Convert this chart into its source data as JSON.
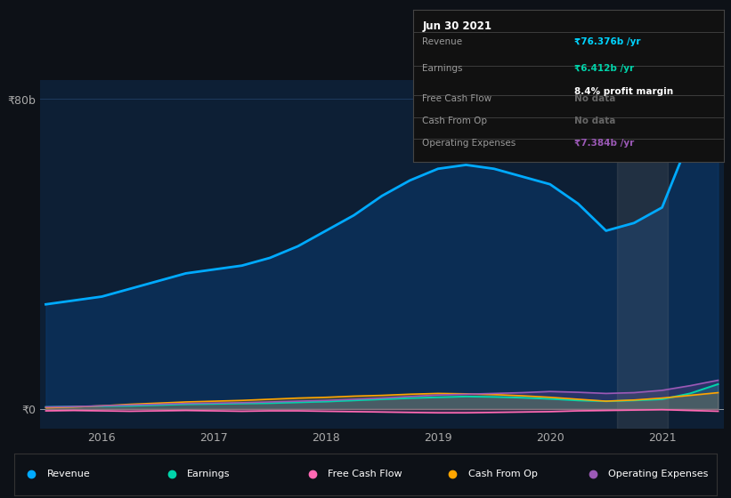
{
  "bg_color": "#0d1117",
  "plot_bg_color": "#0d1f35",
  "grid_color": "#1e3a5f",
  "title_date": "Jun 30 2021",
  "table_rows": [
    {
      "label": "Revenue",
      "value": "₹76.376b /yr",
      "vcolor": "#00d4ff",
      "note": null
    },
    {
      "label": "Earnings",
      "value": "₹6.412b /yr",
      "vcolor": "#00d4aa",
      "note": "8.4% profit margin"
    },
    {
      "label": "Free Cash Flow",
      "value": "No data",
      "vcolor": "#666666",
      "note": null
    },
    {
      "label": "Cash From Op",
      "value": "No data",
      "vcolor": "#666666",
      "note": null
    },
    {
      "label": "Operating Expenses",
      "value": "₹7.384b /yr",
      "vcolor": "#9b59b6",
      "note": null
    }
  ],
  "x": [
    2015.5,
    2015.75,
    2016.0,
    2016.25,
    2016.5,
    2016.75,
    2017.0,
    2017.25,
    2017.5,
    2017.75,
    2018.0,
    2018.25,
    2018.5,
    2018.75,
    2019.0,
    2019.25,
    2019.5,
    2019.75,
    2020.0,
    2020.25,
    2020.5,
    2020.75,
    2021.0,
    2021.25,
    2021.5
  ],
  "revenue": [
    27,
    28,
    29,
    31,
    33,
    35,
    36,
    37,
    39,
    42,
    46,
    50,
    55,
    59,
    62,
    63,
    62,
    60,
    58,
    53,
    46,
    48,
    52,
    70,
    76
  ],
  "earnings": [
    0.5,
    0.6,
    0.7,
    0.8,
    1.0,
    1.2,
    1.3,
    1.4,
    1.5,
    1.7,
    1.9,
    2.2,
    2.5,
    2.8,
    3.0,
    3.2,
    3.1,
    2.9,
    2.6,
    2.2,
    2.0,
    2.2,
    2.5,
    4.0,
    6.4
  ],
  "free_cash_flow": [
    -0.5,
    -0.4,
    -0.5,
    -0.6,
    -0.5,
    -0.4,
    -0.5,
    -0.6,
    -0.5,
    -0.5,
    -0.6,
    -0.7,
    -0.8,
    -0.9,
    -1.0,
    -1.0,
    -0.9,
    -0.8,
    -0.7,
    -0.5,
    -0.4,
    -0.3,
    -0.2,
    -0.4,
    -0.6
  ],
  "cash_from_op": [
    0.3,
    0.5,
    0.8,
    1.2,
    1.5,
    1.8,
    2.0,
    2.2,
    2.5,
    2.8,
    3.0,
    3.3,
    3.5,
    3.8,
    4.0,
    3.9,
    3.7,
    3.4,
    3.0,
    2.5,
    2.0,
    2.3,
    2.8,
    3.5,
    4.2
  ],
  "op_expenses": [
    0.5,
    0.6,
    0.8,
    1.0,
    1.2,
    1.4,
    1.5,
    1.6,
    1.8,
    2.0,
    2.2,
    2.5,
    2.8,
    3.2,
    3.6,
    3.8,
    4.0,
    4.2,
    4.5,
    4.3,
    4.0,
    4.2,
    4.8,
    6.0,
    7.4
  ],
  "revenue_color": "#00aaff",
  "revenue_fill": "#0a3a6e",
  "earnings_color": "#00d4aa",
  "free_cash_flow_color": "#ff69b4",
  "cash_from_op_color": "#ffa500",
  "op_expenses_color": "#9b59b6",
  "ylim": [
    -5,
    85
  ],
  "yticks": [
    0,
    80
  ],
  "ytick_labels": [
    "₹0",
    "₹80b"
  ],
  "xtick_labels": [
    "2016",
    "2017",
    "2018",
    "2019",
    "2020",
    "2021"
  ],
  "xtick_positions": [
    2016,
    2017,
    2018,
    2019,
    2020,
    2021
  ],
  "gray_span_start": 2020.6,
  "gray_span_end": 2021.05,
  "legend": [
    {
      "label": "Revenue",
      "color": "#00aaff"
    },
    {
      "label": "Earnings",
      "color": "#00d4aa"
    },
    {
      "label": "Free Cash Flow",
      "color": "#ff69b4"
    },
    {
      "label": "Cash From Op",
      "color": "#ffa500"
    },
    {
      "label": "Operating Expenses",
      "color": "#9b59b6"
    }
  ]
}
